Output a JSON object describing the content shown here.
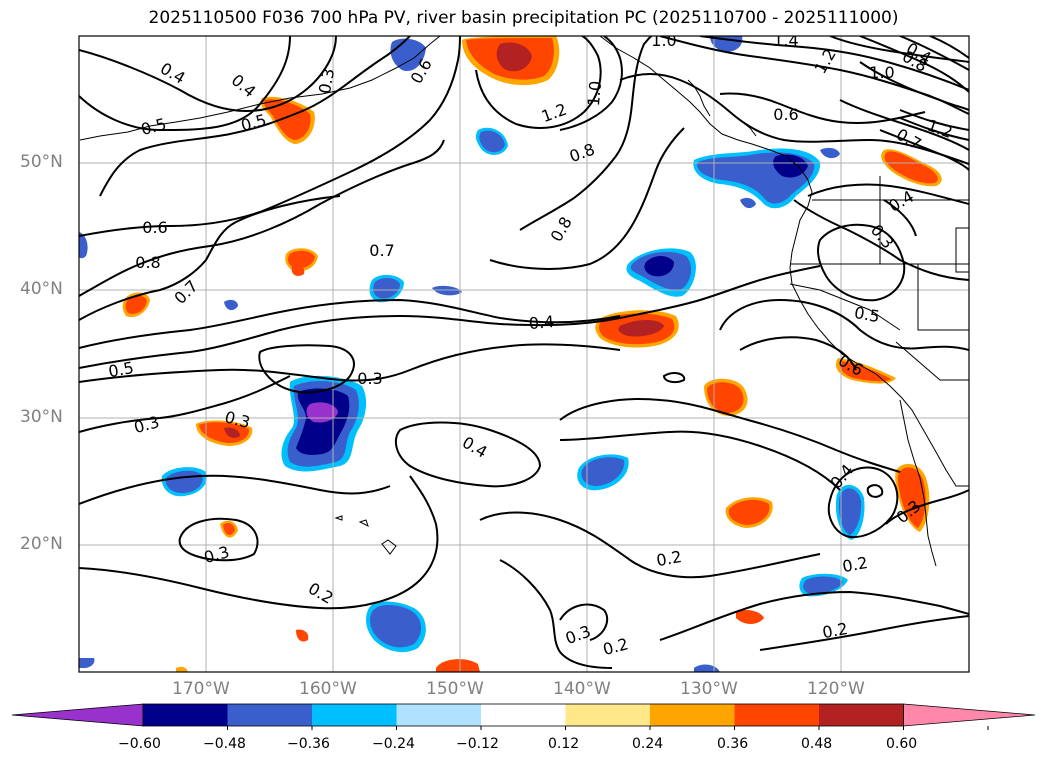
{
  "title": "2025110500 F036 700 hPa PV, river basin precipitation PC (2025110700 - 2025111000)",
  "lat_labels": [
    "50°N",
    "40°N",
    "30°N",
    "20°N"
  ],
  "lon_labels": [
    "170°W",
    "160°W",
    "150°W",
    "140°W",
    "130°W",
    "120°W"
  ],
  "contour_labels": [
    "0.4",
    "0.5",
    "0.5",
    "0.6",
    "0.8",
    "0.7",
    "0.7",
    "0.5",
    "0.3",
    "0.3",
    "0.3",
    "0.3",
    "0.4",
    "0.4",
    "0.2",
    "0.3",
    "0.2",
    "0.2",
    "0.2",
    "0.2",
    "0.4",
    "0.3",
    "0.5",
    "0.6",
    "0.4",
    "0.3",
    "0.8",
    "0.8",
    "1.2",
    "1.0",
    "1.0",
    "1.4",
    "1.2",
    "1.0",
    "0.6",
    "0.7",
    "1.2",
    "0.4",
    "0.6",
    "0.8",
    "0.3",
    "0.4"
  ],
  "colorbar": {
    "ticks": [
      "−0.60",
      "−0.48",
      "−0.36",
      "−0.24",
      "−0.12",
      "0.12",
      "0.24",
      "0.36",
      "0.48",
      "0.60"
    ],
    "colors": [
      "#9932cc",
      "#00008b",
      "#3a5fcd",
      "#00bfff",
      "#b0e2ff",
      "#ffffff",
      "#ffe78a",
      "#ffa500",
      "#ff4500",
      "#b22222",
      "#ff88aa"
    ]
  }
}
